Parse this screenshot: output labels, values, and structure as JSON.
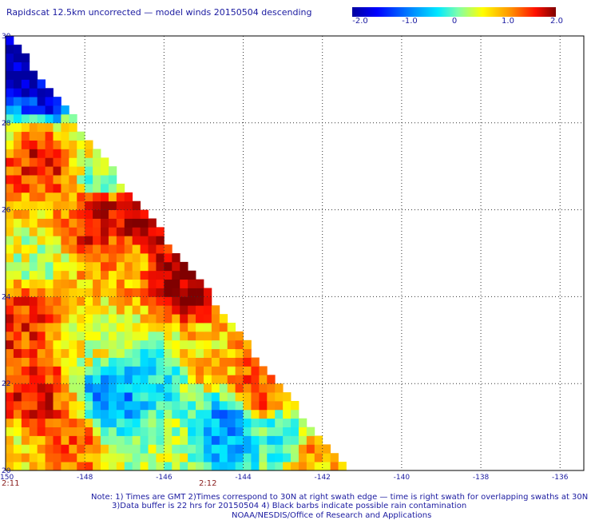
{
  "title": "Rapidscat 12.5km uncorrected — model winds 20150504 descending",
  "colorbar": {
    "labels": [
      "-2.0",
      "-1.0",
      "0",
      "1.0",
      "2.0"
    ],
    "range": [
      -2.0,
      2.0
    ],
    "colors": [
      "#0000a0",
      "#0000ff",
      "#0080ff",
      "#00e8ff",
      "#7fffaa",
      "#ffff00",
      "#ff9000",
      "#ff1000",
      "#800000"
    ]
  },
  "chart_data": {
    "type": "heatmap",
    "title": "Rapidscat 12.5km uncorrected — model winds 20150504 descending",
    "x_ticks": [
      "-150",
      "-148",
      "-146",
      "-144",
      "-142",
      "-140",
      "-138",
      "-136"
    ],
    "y_ticks": [
      "20",
      "22",
      "24",
      "26",
      "28",
      "30"
    ],
    "xlim": [
      -150,
      -135.4
    ],
    "ylim": [
      20,
      30
    ],
    "grid": true,
    "grid_style": "dotted",
    "value_range": [
      -2.0,
      2.0
    ],
    "swath_edge": {
      "top_lon": -150,
      "top_lat": 30,
      "bottom_lon": -141.5,
      "bottom_lat": 20
    },
    "regions": [
      {
        "lon": -149.3,
        "lat": 29.2,
        "value": -1.8
      },
      {
        "lon": -148.7,
        "lat": 28.6,
        "value": -1.6
      },
      {
        "lon": -148.9,
        "lat": 27.3,
        "value": 1.6
      },
      {
        "lon": -148.2,
        "lat": 27.8,
        "value": 0.6
      },
      {
        "lon": -147.6,
        "lat": 26.8,
        "value": 0.0
      },
      {
        "lon": -147.6,
        "lat": 25.9,
        "value": 1.7
      },
      {
        "lon": -146.4,
        "lat": 25.7,
        "value": 1.8
      },
      {
        "lon": -145.4,
        "lat": 24.4,
        "value": 1.9
      },
      {
        "lon": -147.0,
        "lat": 24.8,
        "value": 0.9
      },
      {
        "lon": -149.3,
        "lat": 24.8,
        "value": 0.3
      },
      {
        "lon": -149.6,
        "lat": 23.5,
        "value": 1.4
      },
      {
        "lon": -147.8,
        "lat": 23.0,
        "value": 0.4
      },
      {
        "lon": -147.3,
        "lat": 21.8,
        "value": -0.9
      },
      {
        "lon": -146.2,
        "lat": 22.2,
        "value": -0.4
      },
      {
        "lon": -145.0,
        "lat": 22.6,
        "value": 0.7
      },
      {
        "lon": -143.6,
        "lat": 21.9,
        "value": 1.3
      },
      {
        "lon": -144.4,
        "lat": 21.0,
        "value": -0.8
      },
      {
        "lon": -143.0,
        "lat": 20.7,
        "value": -0.3
      },
      {
        "lon": -142.3,
        "lat": 20.3,
        "value": 0.9
      },
      {
        "lon": -149.2,
        "lat": 21.8,
        "value": 1.5
      },
      {
        "lon": -148.5,
        "lat": 20.6,
        "value": 1.2
      },
      {
        "lon": -149.6,
        "lat": 20.3,
        "value": 0.6
      },
      {
        "lon": -146.0,
        "lat": 20.5,
        "value": 0.2
      }
    ]
  },
  "times": {
    "left": "2:11",
    "mid": "2:12"
  },
  "footer": {
    "line1": "Note: 1) Times are GMT 2)Times correspond to 30N at right swath edge — time is right swath for overlapping swaths at 30N",
    "line2": "3)Data buffer is 22 hrs for 20150504 4) Black barbs indicate possible rain contamination",
    "line3": "NOAA/NESDIS/Office of Research and Applications"
  }
}
